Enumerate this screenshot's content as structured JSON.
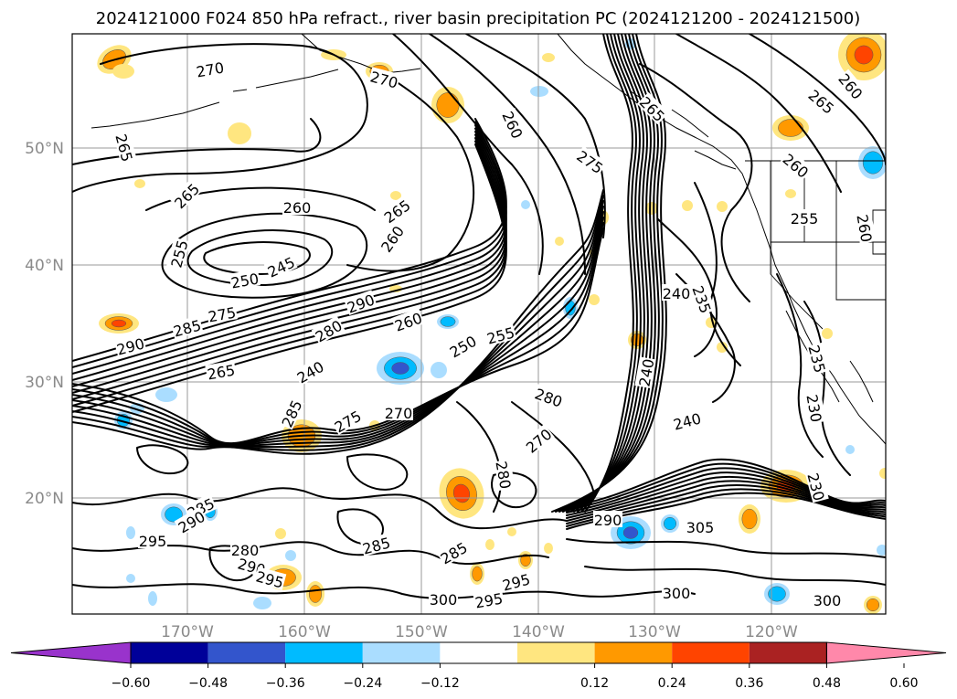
{
  "title": "2024121000 F024 850 hPa refract., river basin precipitation PC (2024121200 - 2024121500)",
  "map": {
    "lon_labels": [
      "170°W",
      "160°W",
      "150°W",
      "140°W",
      "130°W",
      "120°W"
    ],
    "lat_labels": [
      "50°N",
      "40°N",
      "30°N",
      "20°N"
    ],
    "gridlines": true
  },
  "contour_labels": [
    "270",
    "270",
    "265",
    "265",
    "265",
    "260",
    "260",
    "260",
    "275",
    "255",
    "250",
    "245",
    "290",
    "285",
    "275",
    "290",
    "260",
    "280",
    "250",
    "255",
    "265",
    "240",
    "285",
    "275",
    "270",
    "280",
    "270",
    "280",
    "240",
    "235",
    "240",
    "240",
    "260",
    "265",
    "260",
    "255",
    "260",
    "235",
    "230",
    "230",
    "295",
    "285",
    "290",
    "280",
    "290",
    "295",
    "285",
    "285",
    "300",
    "295",
    "295",
    "290",
    "305",
    "300",
    "300",
    "265"
  ],
  "colorbar": {
    "tick_labels": [
      "−0.60",
      "−0.48",
      "−0.36",
      "−0.24",
      "−0.12",
      "0.12",
      "0.24",
      "0.36",
      "0.48",
      "0.60"
    ],
    "colors": [
      "#9933cc",
      "#000099",
      "#3355cc",
      "#00bbff",
      "#aaddff",
      "#ffffff",
      "#ffe680",
      "#ff9900",
      "#ff4400",
      "#aa2222",
      "#ff88aa"
    ],
    "extend": "both"
  },
  "shading": {
    "positive_colors": [
      "#ffe680",
      "#ff9900",
      "#ff4400"
    ],
    "negative_colors": [
      "#aaddff",
      "#00bbff",
      "#3355cc"
    ]
  }
}
